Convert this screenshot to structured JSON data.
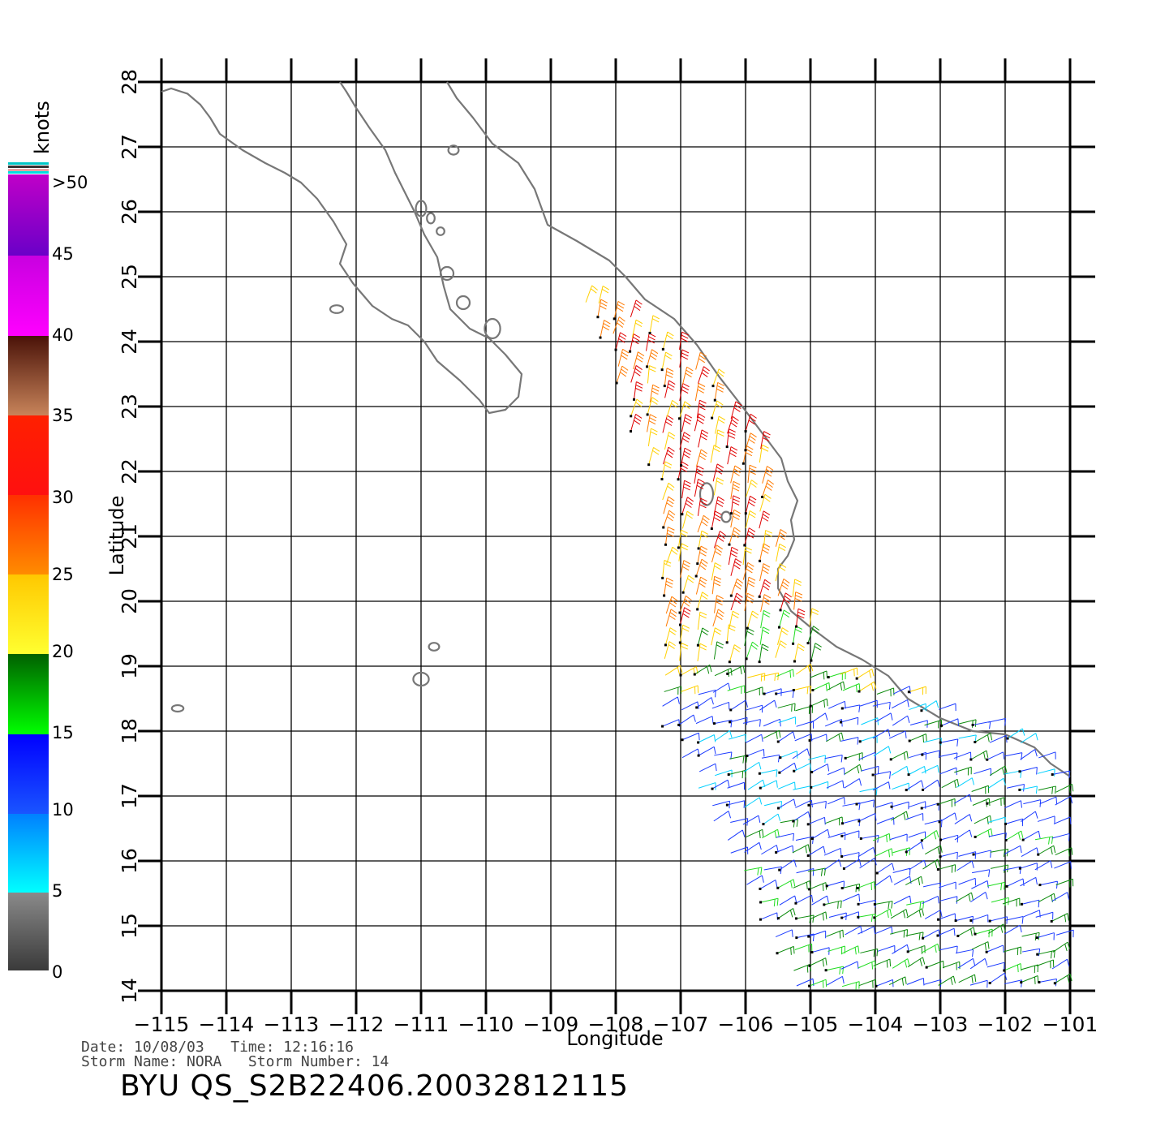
{
  "legend": {
    "unit": "knots",
    "labels": [
      ">50",
      "45",
      "40",
      "35",
      "30",
      "25",
      "20",
      "15",
      "10",
      "5",
      "0"
    ],
    "colors": {
      "gray": "#7a7a7a",
      "cyan": "#00ffff",
      "blue": "#0000ff",
      "dark_green": "#006400",
      "green": "#00ff00",
      "yellow": "#ffff00",
      "orange": "#ff8c00",
      "red": "#ff0000",
      "brown": "#5a1a10",
      "tan": "#c8845a",
      "magenta": "#ff00ff",
      "purple": "#6a00c8"
    }
  },
  "map": {
    "xlabel": "Longitude",
    "ylabel": "Latitude",
    "lon_range": [
      -115,
      -101
    ],
    "lat_range": [
      14,
      28
    ],
    "lon_ticks": [
      "-115",
      "-114",
      "-113",
      "-112",
      "-111",
      "-110",
      "-109",
      "-108",
      "-107",
      "-106",
      "-105",
      "-104",
      "-103",
      "-102",
      "-101"
    ],
    "lat_ticks": [
      "14",
      "15",
      "16",
      "17",
      "18",
      "19",
      "20",
      "21",
      "22",
      "23",
      "24",
      "25",
      "26",
      "27",
      "28"
    ],
    "coastline_color": "#777777",
    "wind_swath": {
      "description_colors": [
        "blue",
        "cyan",
        "green",
        "yellow",
        "orange",
        "red"
      ],
      "bands": [
        {
          "lat_min": 19.5,
          "lat_max": 24.2,
          "speed_knots": 28
        },
        {
          "lat_min": 18.5,
          "lat_max": 19.5,
          "speed_knots": 20
        },
        {
          "lat_min": 14.0,
          "lat_max": 18.5,
          "speed_knots": 12
        }
      ]
    }
  },
  "footer": {
    "line1": "Date: 10/08/03   Time: 12:16:16",
    "line2": "Storm Name: NORA   Storm Number: 14",
    "product": "BYU  QS_S2B22406.20032812115"
  }
}
